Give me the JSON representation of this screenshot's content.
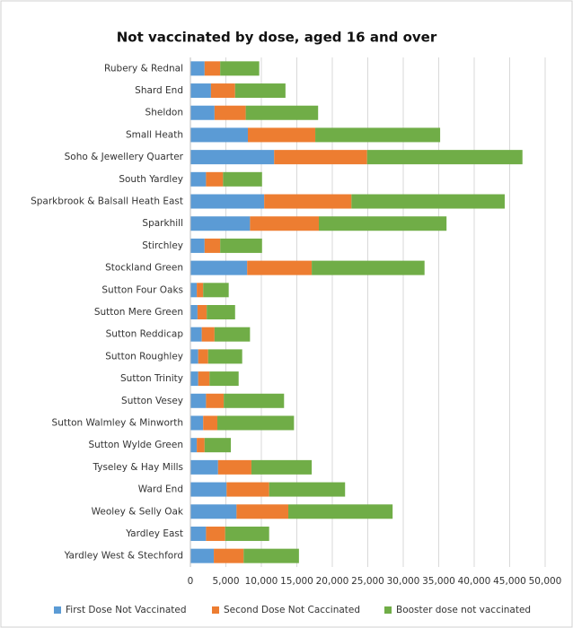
{
  "chart_data": {
    "type": "bar",
    "orientation": "horizontal",
    "stacked": true,
    "title": "Not vaccinated by dose, aged 16 and over",
    "categories": [
      "Rubery & Rednal",
      "Shard End",
      "Sheldon",
      "Small Heath",
      "Soho & Jewellery Quarter",
      "South Yardley",
      "Sparkbrook & Balsall Heath East",
      "Sparkhill",
      "Stirchley",
      "Stockland Green",
      "Sutton Four Oaks",
      "Sutton Mere Green",
      "Sutton Reddicap",
      "Sutton Roughley",
      "Sutton Trinity",
      "Sutton Vesey",
      "Sutton Walmley & Minworth",
      "Sutton Wylde Green",
      "Tyseley & Hay Mills",
      "Ward End",
      "Weoley & Selly Oak",
      "Yardley East",
      "Yardley West & Stechford"
    ],
    "series": [
      {
        "name": "First Dose Not Vaccinated",
        "color": "#5b9bd5",
        "values": [
          2000,
          2900,
          3400,
          8100,
          11800,
          2200,
          10400,
          8400,
          2000,
          8000,
          900,
          1000,
          1600,
          1100,
          1100,
          2200,
          1800,
          900,
          3900,
          5100,
          6500,
          2200,
          3300
        ]
      },
      {
        "name": "Second Dose Not Caccinated",
        "color": "#ed7d31",
        "values": [
          2200,
          3400,
          4400,
          9500,
          13100,
          2400,
          12300,
          9700,
          2200,
          9100,
          900,
          1300,
          1800,
          1400,
          1600,
          2500,
          2000,
          1100,
          4700,
          6000,
          7300,
          2700,
          4200
        ]
      },
      {
        "name": "Booster dose not vaccinated",
        "color": "#70ad47",
        "values": [
          5500,
          7100,
          10200,
          17600,
          21900,
          5500,
          21600,
          18000,
          5900,
          15900,
          3600,
          4000,
          5000,
          4800,
          4100,
          8500,
          10800,
          3700,
          8500,
          10700,
          14700,
          6200,
          7800
        ]
      }
    ],
    "xlim": [
      0,
      50000
    ],
    "xticks": [
      0,
      {
        "value": 5000,
        "label": "5,000"
      },
      {
        "value": 10000,
        "label": "10,000"
      },
      {
        "value": 15000,
        "label": "15,000"
      },
      {
        "value": 20000,
        "label": "20,000"
      },
      {
        "value": 25000,
        "label": "25,000"
      },
      {
        "value": 30000,
        "label": "30,000"
      },
      {
        "value": 35000,
        "label": "35,000"
      },
      {
        "value": 40000,
        "label": "40,000"
      },
      {
        "value": 45000,
        "label": "45,000"
      },
      {
        "value": 50000,
        "label": "50,000"
      }
    ],
    "grid": true,
    "legend": "bottom"
  }
}
